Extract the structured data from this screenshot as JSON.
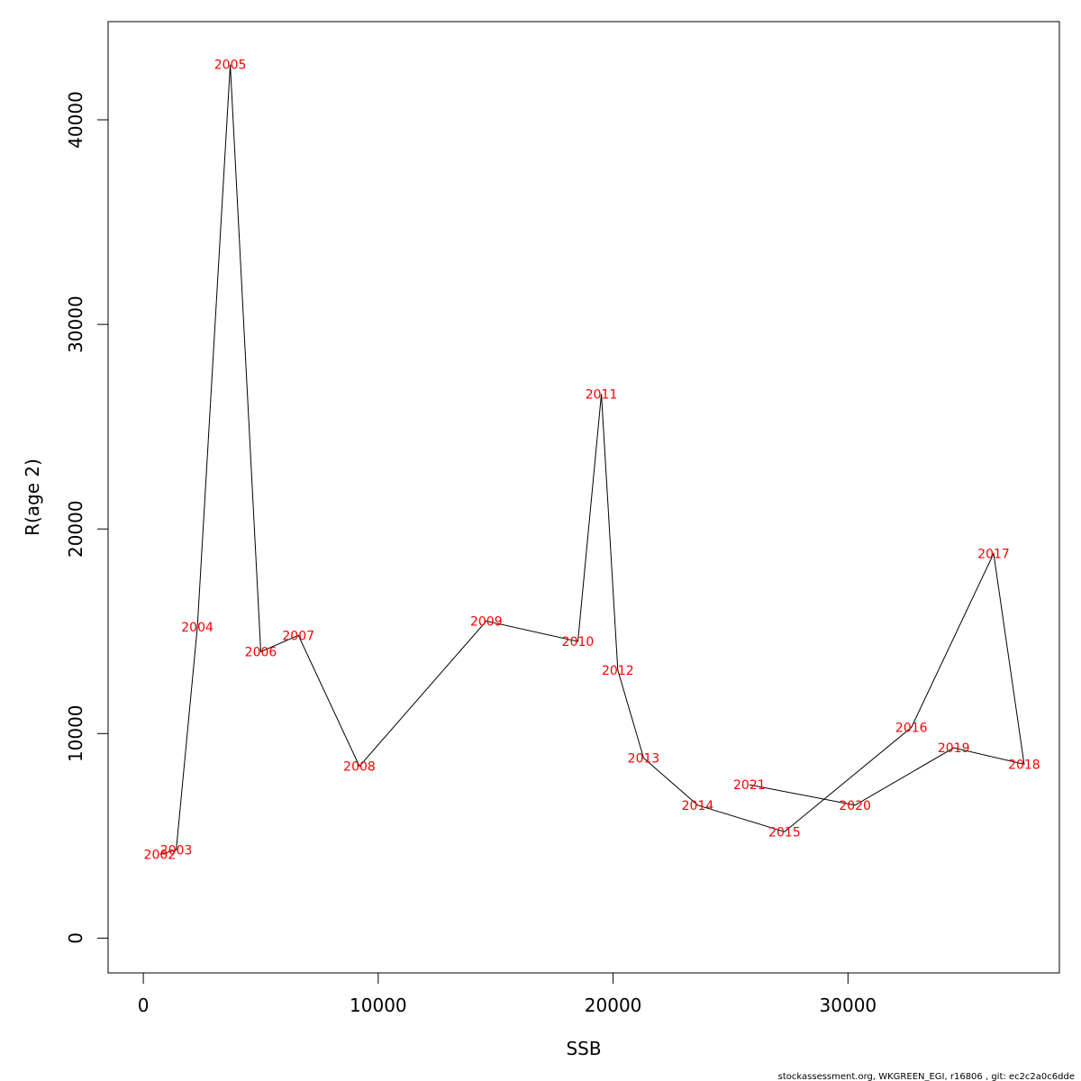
{
  "chart_data": {
    "type": "line",
    "title": "",
    "xlabel": "SSB",
    "ylabel": "R(age 2)",
    "xlim": [
      -1500,
      39000
    ],
    "ylim": [
      -1700,
      44800
    ],
    "x_ticks": [
      0,
      10000,
      20000,
      30000
    ],
    "y_ticks": [
      0,
      10000,
      20000,
      30000,
      40000
    ],
    "grid": false,
    "line_color": "#000000",
    "label_color": "#ff0000",
    "points": [
      {
        "label": "2002",
        "x": 700,
        "y": 4100
      },
      {
        "label": "2003",
        "x": 1400,
        "y": 4300
      },
      {
        "label": "2004",
        "x": 2300,
        "y": 15200
      },
      {
        "label": "2005",
        "x": 3700,
        "y": 42700
      },
      {
        "label": "2006",
        "x": 5000,
        "y": 14000
      },
      {
        "label": "2007",
        "x": 6600,
        "y": 14800
      },
      {
        "label": "2008",
        "x": 9200,
        "y": 8400
      },
      {
        "label": "2009",
        "x": 14600,
        "y": 15500
      },
      {
        "label": "2010",
        "x": 18500,
        "y": 14500
      },
      {
        "label": "2011",
        "x": 19500,
        "y": 26600
      },
      {
        "label": "2012",
        "x": 20200,
        "y": 13100
      },
      {
        "label": "2013",
        "x": 21300,
        "y": 8800
      },
      {
        "label": "2014",
        "x": 23600,
        "y": 6500
      },
      {
        "label": "2015",
        "x": 27300,
        "y": 5200
      },
      {
        "label": "2016",
        "x": 32700,
        "y": 10300
      },
      {
        "label": "2017",
        "x": 36200,
        "y": 18800
      },
      {
        "label": "2018",
        "x": 37500,
        "y": 8500
      },
      {
        "label": "2019",
        "x": 34500,
        "y": 9300
      },
      {
        "label": "2020",
        "x": 30300,
        "y": 6500
      },
      {
        "label": "2021",
        "x": 25800,
        "y": 7500
      }
    ]
  },
  "footer": {
    "text": "stockassessment.org, WKGREEN_EGI, r16806 , git: ec2c2a0c6dde"
  }
}
